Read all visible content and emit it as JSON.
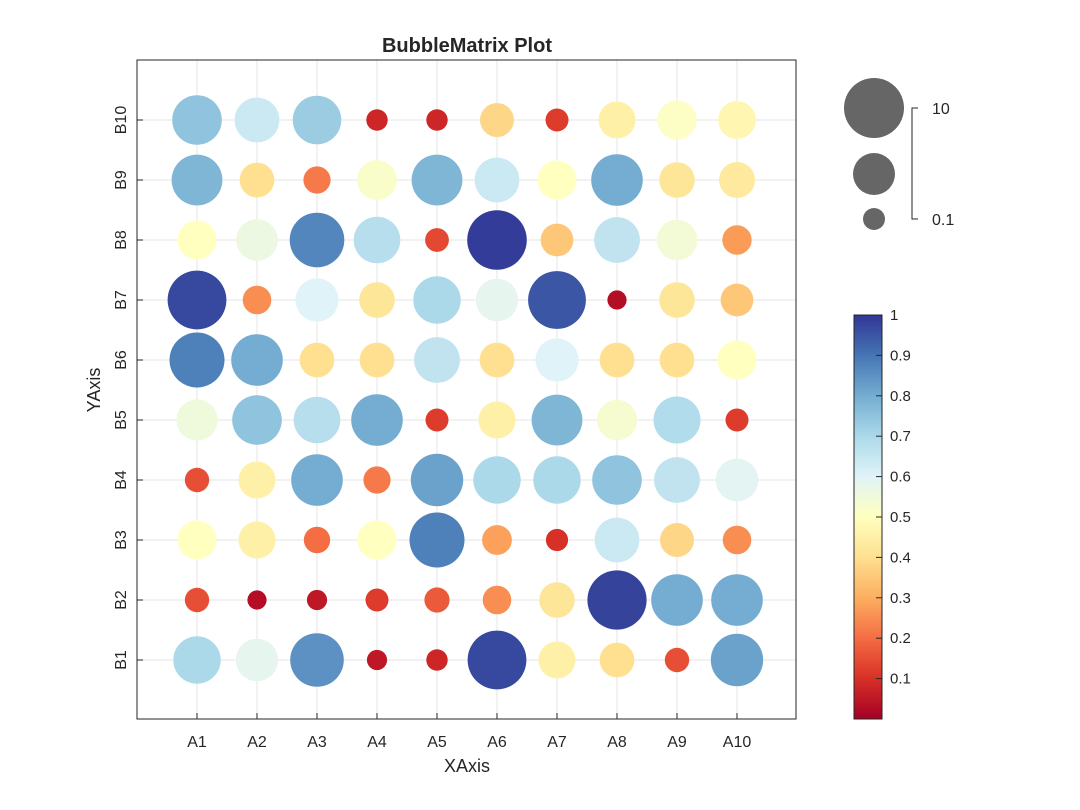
{
  "chart_data": {
    "type": "scatter",
    "title": "BubbleMatrix Plot",
    "xlabel": "XAxis",
    "ylabel": "YAxis",
    "x_categories": [
      "A1",
      "A2",
      "A3",
      "A4",
      "A5",
      "A6",
      "A7",
      "A8",
      "A9",
      "A10"
    ],
    "y_categories": [
      "B1",
      "B2",
      "B3",
      "B4",
      "B5",
      "B6",
      "B7",
      "B8",
      "B9",
      "B10"
    ],
    "grid": true,
    "colormap": "RdYlBu",
    "colorbar": {
      "min": 0.0,
      "max": 1.0,
      "ticks": [
        0.1,
        0.2,
        0.3,
        0.4,
        0.5,
        0.6,
        0.7,
        0.8,
        0.9,
        1
      ],
      "tick_labels": [
        "0.1",
        "0.2",
        "0.3",
        "0.4",
        "0.5",
        "0.6",
        "0.7",
        "0.8",
        "0.9",
        "1"
      ]
    },
    "size_legend": {
      "labels": [
        "10",
        "0.1"
      ]
    },
    "values": [
      [
        0.7,
        0.58,
        0.85,
        0.05,
        0.08,
        0.97,
        0.45,
        0.4,
        0.15,
        0.82
      ],
      [
        0.15,
        0.03,
        0.05,
        0.12,
        0.17,
        0.25,
        0.42,
        0.98,
        0.8,
        0.8
      ],
      [
        0.5,
        0.45,
        0.2,
        0.5,
        0.88,
        0.28,
        0.1,
        0.64,
        0.38,
        0.25
      ],
      [
        0.15,
        0.45,
        0.8,
        0.22,
        0.82,
        0.7,
        0.7,
        0.75,
        0.66,
        0.59
      ],
      [
        0.55,
        0.75,
        0.68,
        0.8,
        0.12,
        0.45,
        0.78,
        0.53,
        0.69,
        0.12
      ],
      [
        0.88,
        0.8,
        0.4,
        0.4,
        0.66,
        0.4,
        0.6,
        0.4,
        0.4,
        0.5
      ],
      [
        0.97,
        0.25,
        0.6,
        0.42,
        0.7,
        0.58,
        0.95,
        0.03,
        0.42,
        0.35
      ],
      [
        0.5,
        0.56,
        0.87,
        0.68,
        0.14,
        0.99,
        0.35,
        0.66,
        0.54,
        0.27
      ],
      [
        0.78,
        0.4,
        0.22,
        0.52,
        0.78,
        0.64,
        0.5,
        0.8,
        0.42,
        0.43
      ],
      [
        0.75,
        0.64,
        0.73,
        0.08,
        0.08,
        0.38,
        0.12,
        0.45,
        0.51,
        0.47
      ]
    ]
  }
}
